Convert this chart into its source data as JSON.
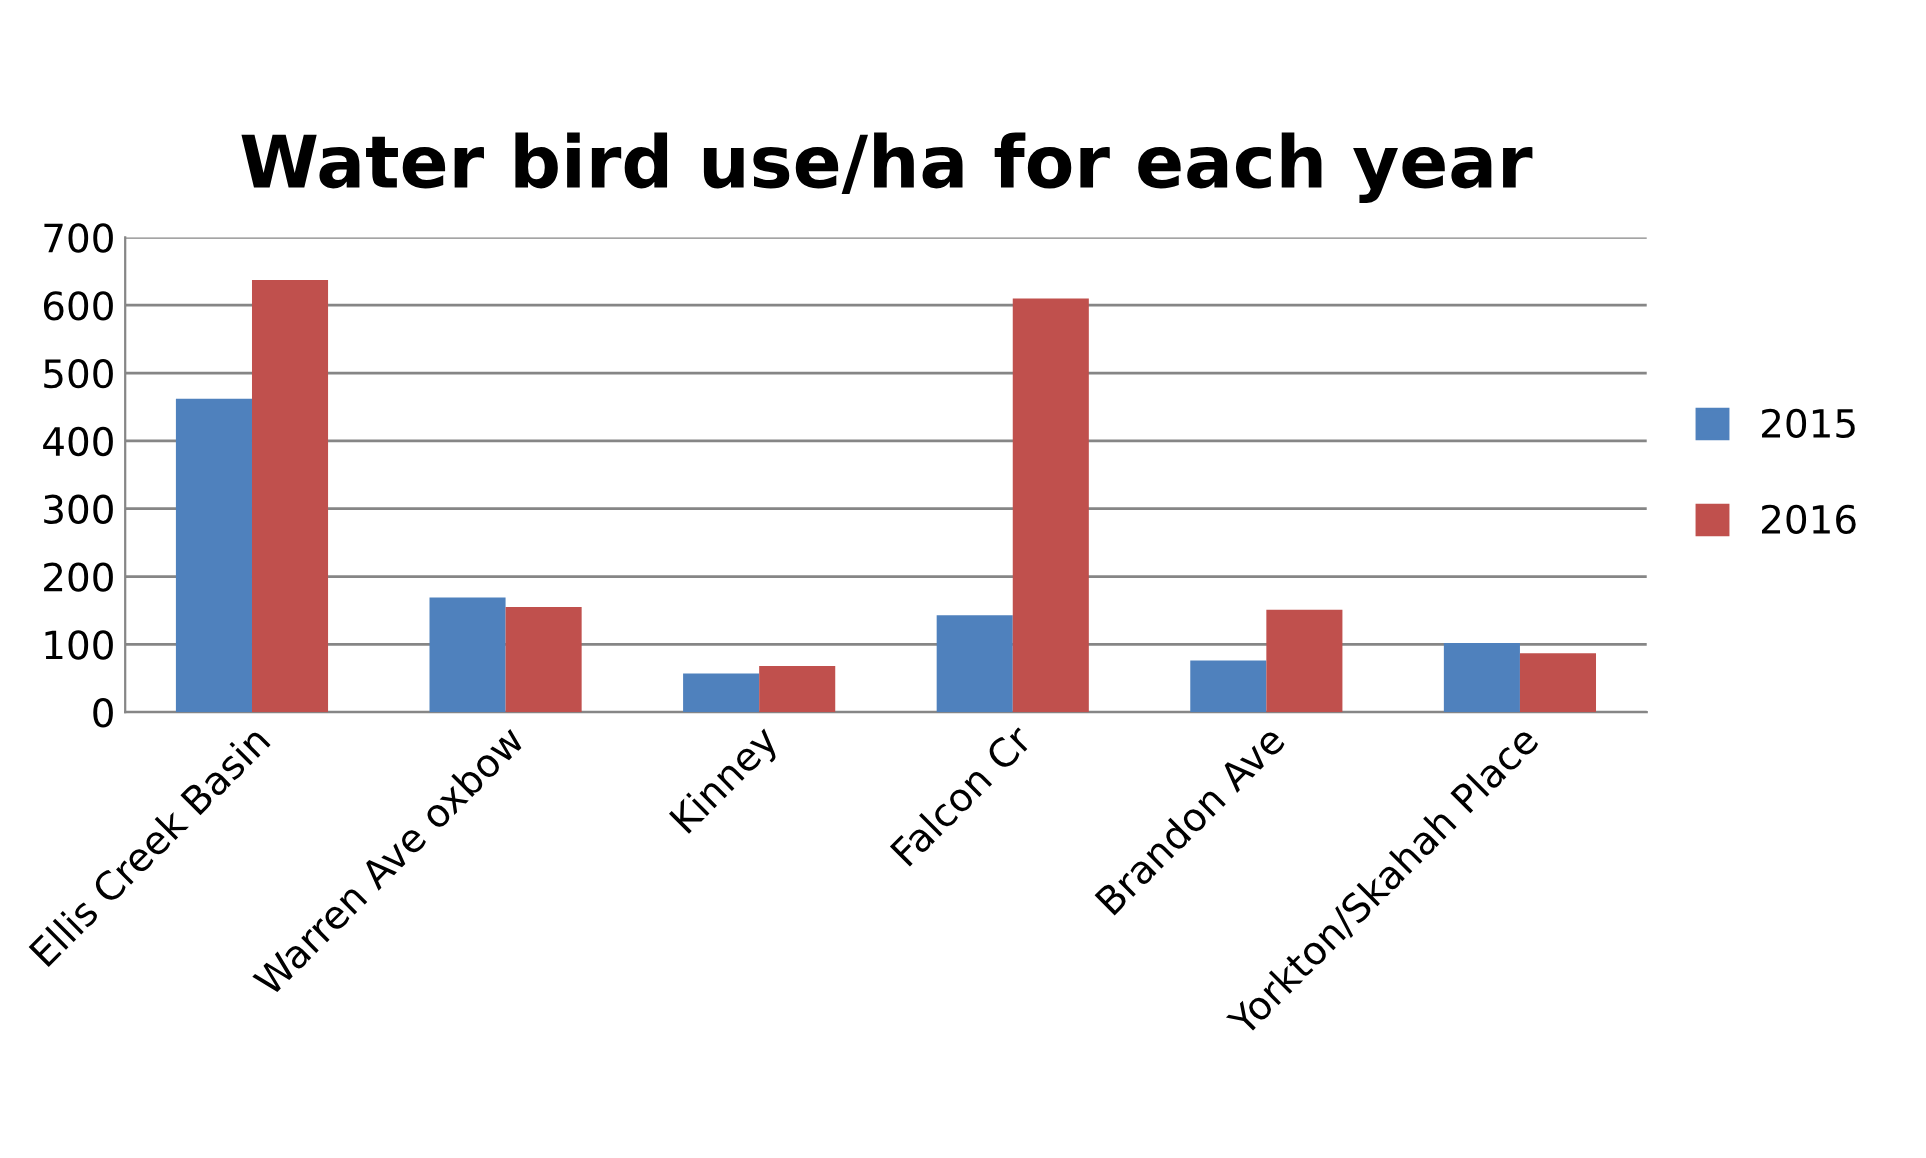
{
  "chart_data": {
    "type": "bar",
    "title": "Water bird use/ha for each year",
    "categories": [
      "Ellis Creek Basin",
      "Warren Ave oxbow",
      "Kinney",
      "Falcon Cr",
      "Brandon Ave",
      "Yorkton/Skahah Place"
    ],
    "series": [
      {
        "name": "2015",
        "color": "#4f81bd",
        "values": [
          462,
          169,
          57,
          143,
          76,
          102
        ]
      },
      {
        "name": "2016",
        "color": "#c0504d",
        "values": [
          637,
          155,
          68,
          610,
          151,
          87
        ]
      }
    ],
    "ylim": [
      0,
      700
    ],
    "yticks": [
      0,
      100,
      200,
      300,
      400,
      500,
      600,
      700
    ],
    "grid": "y",
    "legend": "right"
  }
}
